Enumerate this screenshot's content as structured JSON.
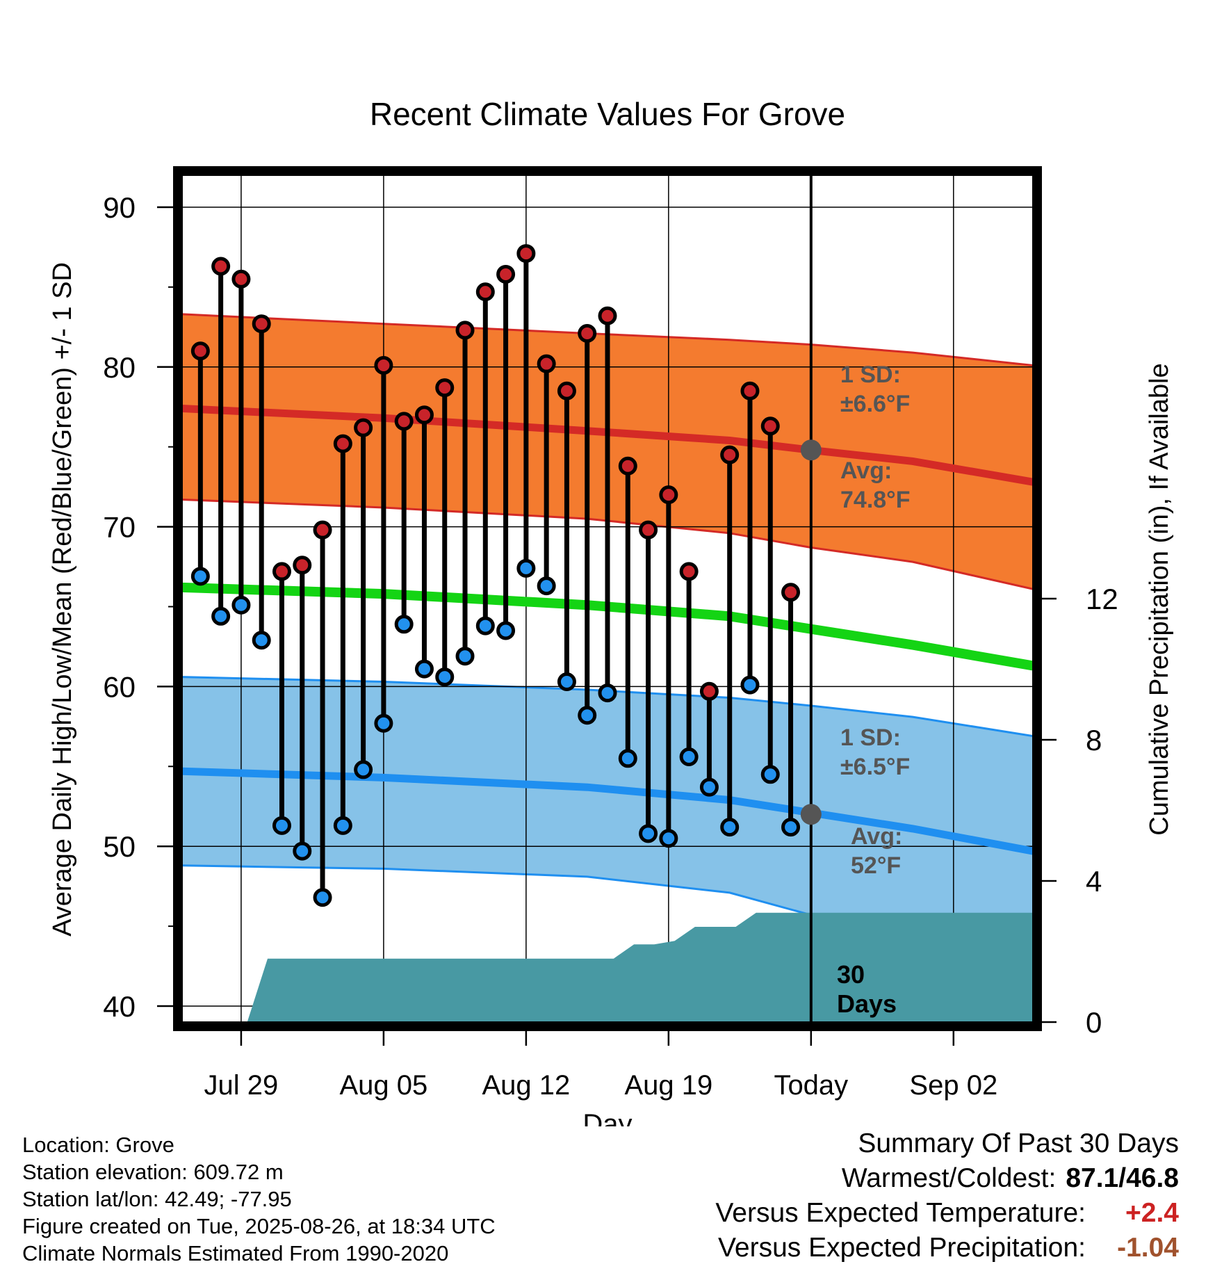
{
  "chart_data": {
    "type": "range-bar",
    "title": "Recent Climate Values For Grove",
    "xlabel": "Day",
    "ylabel": "Average Daily High/Low/Mean (Red/Blue/Green) +/- 1 SD",
    "y2label": "Cumulative Precipitation (in), If Available",
    "ylim": [
      39,
      92
    ],
    "y2lim": [
      0,
      24
    ],
    "yticks": [
      40,
      50,
      60,
      70,
      80,
      90
    ],
    "y2ticks": [
      0,
      4,
      8,
      12
    ],
    "xlim": [
      -0.9,
      40.9
    ],
    "xticks": [
      {
        "day": 2,
        "label": "Jul 29"
      },
      {
        "day": 9,
        "label": "Aug 05"
      },
      {
        "day": 16,
        "label": "Aug 12"
      },
      {
        "day": 23,
        "label": "Aug 19"
      },
      {
        "day": 30,
        "label": "Today"
      },
      {
        "day": 37,
        "label": "Sep 02"
      }
    ],
    "grid": true,
    "observations": {
      "day": [
        0,
        1,
        2,
        3,
        4,
        5,
        6,
        7,
        8,
        9,
        10,
        11,
        12,
        13,
        14,
        15,
        16,
        17,
        18,
        19,
        20,
        21,
        22,
        23,
        24,
        25,
        26,
        27,
        28,
        29
      ],
      "high": [
        81.0,
        86.3,
        85.5,
        82.7,
        67.2,
        67.6,
        69.8,
        75.2,
        76.2,
        80.1,
        76.6,
        77.0,
        78.7,
        82.3,
        84.7,
        85.8,
        87.1,
        80.2,
        78.5,
        82.1,
        83.2,
        73.8,
        69.8,
        72.0,
        67.2,
        59.7,
        74.5,
        78.5,
        76.3,
        65.9
      ],
      "low": [
        66.9,
        64.4,
        65.1,
        62.9,
        51.3,
        49.7,
        46.8,
        51.3,
        54.8,
        57.7,
        63.9,
        61.1,
        60.6,
        61.9,
        63.8,
        63.5,
        67.4,
        66.3,
        60.3,
        58.2,
        59.6,
        55.5,
        50.8,
        50.5,
        55.6,
        53.7,
        51.2,
        60.1,
        54.5,
        51.2
      ]
    },
    "normals": {
      "day": [
        -0.9,
        9,
        19,
        26,
        30,
        35,
        40.9
      ],
      "high_mean": [
        77.4,
        76.8,
        76.0,
        75.4,
        74.8,
        74.1,
        72.8
      ],
      "high_upper": [
        83.3,
        82.7,
        82.1,
        81.7,
        81.4,
        80.9,
        80.1
      ],
      "high_lower": [
        71.7,
        71.2,
        70.5,
        69.6,
        68.7,
        67.8,
        66.1
      ],
      "mean": [
        66.2,
        65.8,
        65.1,
        64.4,
        63.6,
        62.6,
        61.3
      ],
      "low_mean": [
        54.7,
        54.3,
        53.7,
        52.9,
        52.1,
        51.1,
        49.7
      ],
      "low_upper": [
        60.6,
        60.3,
        59.8,
        59.3,
        58.8,
        58.1,
        56.9
      ],
      "low_lower": [
        48.8,
        48.6,
        48.1,
        47.1,
        45.7,
        44.4,
        42.4
      ]
    },
    "precip": {
      "day": [
        2.3,
        3.3,
        16.4,
        20.3,
        21.3,
        22.3,
        23.3,
        24.3,
        25.3,
        26.3,
        27.3,
        28.3,
        30,
        40.9
      ],
      "cum_in": [
        0,
        1.8,
        1.8,
        1.8,
        2.2,
        2.2,
        2.3,
        2.7,
        2.7,
        2.7,
        3.1,
        3.1,
        3.1,
        3.1
      ]
    },
    "today_day": 30,
    "today_high_avg": 74.8,
    "today_low_avg": 52.0,
    "annotations": {
      "high_sd_line1": "1 SD:",
      "high_sd_line2": "±6.6°F",
      "high_avg_line1": "Avg:",
      "high_avg_line2": "74.8°F",
      "low_sd_line1": "1 SD:",
      "low_sd_line2": "±6.5°F",
      "low_avg_line1": "Avg:",
      "low_avg_line2": "52°F",
      "window_line1": "30",
      "window_line2": "Days"
    },
    "colors": {
      "high_band": "#f47b2f",
      "high_line": "#d42a26",
      "low_band": "#86c2e8",
      "low_line": "#1f8ff0",
      "mean_line": "#14d414",
      "precip_fill": "#4899a3",
      "high_dot": "#c8232a",
      "low_dot": "#2291ee",
      "today_dot": "#555555",
      "annot_text": "#555555"
    }
  },
  "footer": {
    "location": "Location: Grove",
    "elevation": "Station elevation: 609.72 m",
    "latlon": "Station lat/lon: 42.49; -77.95",
    "created": "Figure created on Tue, 2025-08-26, at 18:34 UTC",
    "normals": "Climate Normals Estimated From 1990-2020"
  },
  "summary": {
    "title": "Summary Of Past 30 Days",
    "warm_cold_label": "Warmest/Coldest:",
    "warm_cold_value": "87.1/46.8",
    "temp_label": "Versus Expected Temperature:",
    "temp_value": "+2.4",
    "temp_color": "#cc2222",
    "precip_label": "Versus Expected Precipitation:",
    "precip_value": "-1.04",
    "precip_color": "#a0522d"
  }
}
